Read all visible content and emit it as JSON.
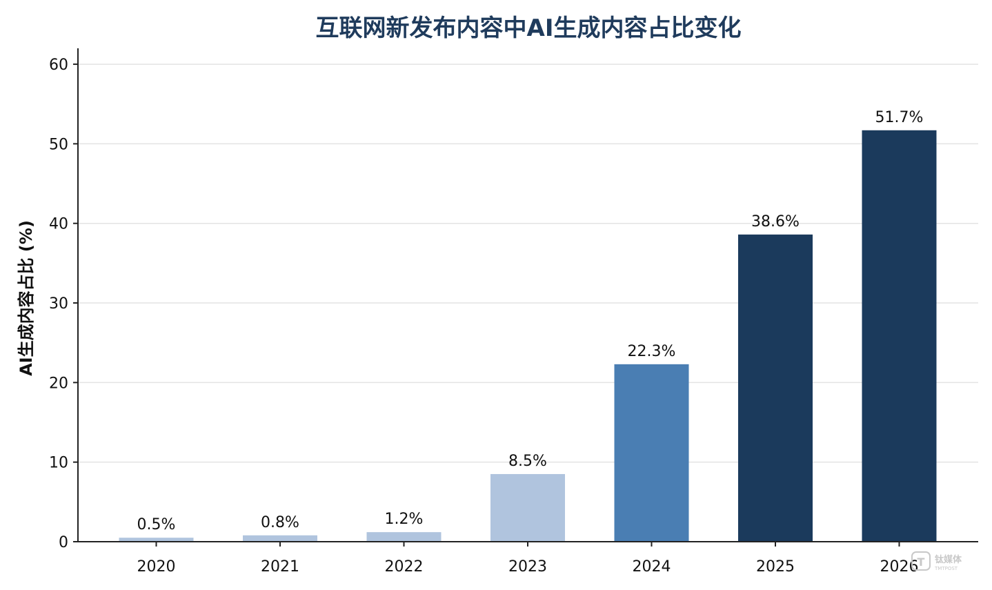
{
  "chart_data": {
    "type": "bar",
    "title": "互联网新发布内容中AI生成内容占比变化",
    "xlabel": "",
    "ylabel": "AI生成内容占比 (%)",
    "categories": [
      "2020",
      "2021",
      "2022",
      "2023",
      "2024",
      "2025",
      "2026"
    ],
    "values": [
      0.5,
      0.8,
      1.2,
      8.5,
      22.3,
      38.6,
      51.7
    ],
    "data_labels": [
      "0.5%",
      "0.8%",
      "1.2%",
      "8.5%",
      "22.3%",
      "38.6%",
      "51.7%"
    ],
    "bar_colors": [
      "#b0c4de",
      "#b0c4de",
      "#b0c4de",
      "#b0c4de",
      "#4a7eb3",
      "#1b3a5c",
      "#1b3a5c"
    ],
    "ylim": [
      0,
      62
    ],
    "yticks": [
      0,
      10,
      20,
      30,
      40,
      50,
      60
    ],
    "grid": true,
    "legend": "none"
  },
  "watermark": {
    "icon": "tmtpost-logo-icon",
    "text": "钛媒体",
    "subtext": "TMTPOST"
  }
}
